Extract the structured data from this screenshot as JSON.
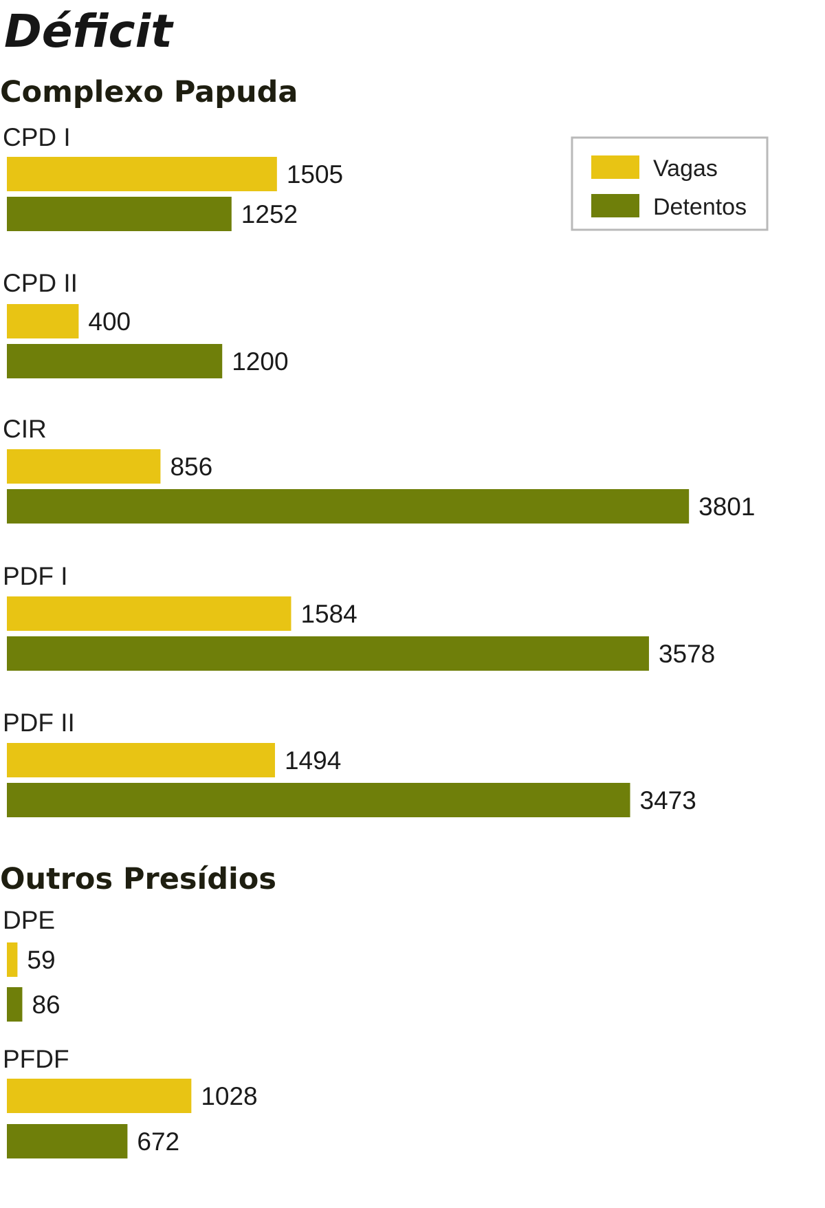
{
  "chart_data": {
    "type": "bar",
    "orientation": "horizontal",
    "title": "Déficit",
    "legend_position": "top-right",
    "grid": false,
    "xlim": [
      0,
      3900
    ],
    "colors": {
      "Vagas": "#e8c414",
      "Detentos": "#6f7f0a"
    },
    "legend": [
      {
        "name": "Vagas",
        "color": "#e8c414"
      },
      {
        "name": "Detentos",
        "color": "#6f7f0a"
      }
    ],
    "sections": [
      {
        "title": "Complexo Papuda",
        "categories": [
          "CPD I",
          "CPD II",
          "CIR",
          "PDF I",
          "PDF II"
        ],
        "series": [
          {
            "name": "Vagas",
            "values": [
              1505,
              400,
              856,
              1584,
              1494
            ]
          },
          {
            "name": "Detentos",
            "values": [
              1252,
              1200,
              3801,
              3578,
              3473
            ]
          }
        ]
      },
      {
        "title": "Outros Presídios",
        "categories": [
          "DPE",
          "PFDF"
        ],
        "series": [
          {
            "name": "Vagas",
            "values": [
              59,
              1028
            ]
          },
          {
            "name": "Detentos",
            "values": [
              86,
              672
            ]
          }
        ]
      }
    ]
  }
}
